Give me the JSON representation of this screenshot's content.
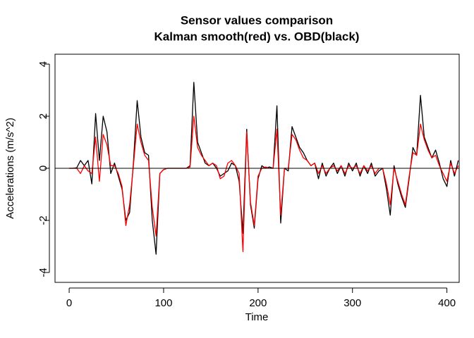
{
  "chart_data": {
    "type": "line",
    "title": "Sensor values comparison",
    "subtitle": "Kalman smooth(red) vs. OBD(black)",
    "x_label": "Time",
    "y_label": "Accelerations (m/s^2)",
    "xlim": [
      -15,
      413
    ],
    "ylim": [
      -4.38,
      4.38
    ],
    "xticks": [
      0,
      100,
      200,
      300,
      400
    ],
    "yticks": [
      -4,
      -2,
      0,
      2,
      4
    ],
    "hline": 0,
    "x": [
      0,
      4,
      8,
      12,
      16,
      20,
      24,
      28,
      32,
      36,
      40,
      44,
      48,
      52,
      56,
      60,
      64,
      68,
      72,
      76,
      80,
      84,
      88,
      92,
      96,
      100,
      104,
      108,
      112,
      116,
      120,
      124,
      128,
      132,
      136,
      140,
      144,
      148,
      152,
      156,
      160,
      164,
      168,
      172,
      176,
      180,
      184,
      188,
      192,
      196,
      200,
      204,
      208,
      212,
      216,
      220,
      224,
      228,
      232,
      236,
      240,
      244,
      248,
      252,
      256,
      260,
      264,
      268,
      272,
      276,
      280,
      284,
      288,
      292,
      296,
      300,
      304,
      308,
      312,
      316,
      320,
      324,
      328,
      332,
      336,
      340,
      344,
      348,
      352,
      356,
      360,
      364,
      368,
      372,
      376,
      380,
      384,
      388,
      392,
      396,
      400,
      404,
      408,
      412
    ],
    "series": [
      {
        "color": "#000000",
        "values": [
          0,
          0,
          0.02,
          0.3,
          0.1,
          0.3,
          -0.6,
          2.1,
          0.3,
          2.0,
          1.4,
          -0.2,
          0.2,
          -0.3,
          -0.8,
          -2.0,
          -1.7,
          0.2,
          2.6,
          1.2,
          0.6,
          0.5,
          -2.0,
          -3.3,
          -0.2,
          -0.05,
          0,
          0,
          0,
          0,
          0,
          0,
          0.1,
          3.3,
          1.0,
          0.6,
          0.2,
          0.1,
          0.2,
          0,
          -0.3,
          -0.2,
          -0.1,
          0.2,
          0.1,
          -0.5,
          -2.5,
          1.5,
          -1.4,
          -2.3,
          -0.4,
          0.1,
          0,
          0.05,
          0,
          2.4,
          -2.1,
          0,
          -0.1,
          1.6,
          1.2,
          0.8,
          0.6,
          0.3,
          0.1,
          0.2,
          -0.4,
          0.2,
          -0.3,
          0,
          0.2,
          -0.2,
          0.1,
          -0.3,
          0.2,
          -0.1,
          0.2,
          -0.3,
          0.1,
          -0.2,
          0.2,
          -0.3,
          -0.1,
          0,
          -0.8,
          -1.8,
          0.1,
          -0.6,
          -1.1,
          -1.5,
          -0.4,
          0.8,
          0.5,
          2.8,
          1.2,
          0.8,
          0.4,
          0.7,
          0.2,
          -0.4,
          -0.7,
          0.3,
          -0.3,
          0.3
        ]
      },
      {
        "color": "#ff0000",
        "values": [
          0,
          0,
          0,
          -0.2,
          0.1,
          -0.1,
          -0.2,
          1.2,
          -0.5,
          1.3,
          0.9,
          0.1,
          0.1,
          -0.2,
          -0.7,
          -2.2,
          -1.4,
          0.1,
          1.7,
          1.0,
          0.5,
          0.3,
          -1.5,
          -2.6,
          -0.2,
          -0.05,
          0,
          0,
          0,
          0,
          0,
          0,
          0.05,
          2.0,
          0.8,
          0.5,
          0.3,
          0.1,
          0.2,
          0.1,
          -0.4,
          -0.3,
          0.2,
          0.3,
          0.1,
          -0.2,
          -3.2,
          1.4,
          -1.3,
          -2.2,
          -0.3,
          0,
          0.05,
          0,
          0,
          1.5,
          -1.8,
          0,
          0,
          1.3,
          1.1,
          0.7,
          0.4,
          0.3,
          0.1,
          0.2,
          -0.2,
          0.1,
          -0.2,
          0,
          0.1,
          -0.1,
          0.1,
          -0.2,
          0.1,
          0,
          0.1,
          -0.2,
          0.1,
          -0.1,
          0.1,
          -0.2,
          0,
          0,
          -0.6,
          -1.4,
          0,
          -0.5,
          -1.0,
          -1.4,
          -0.3,
          0.6,
          0.5,
          1.7,
          1.1,
          0.7,
          0.4,
          0.5,
          0.1,
          -0.2,
          -0.5,
          0.2,
          -0.2,
          0.1
        ]
      }
    ]
  }
}
